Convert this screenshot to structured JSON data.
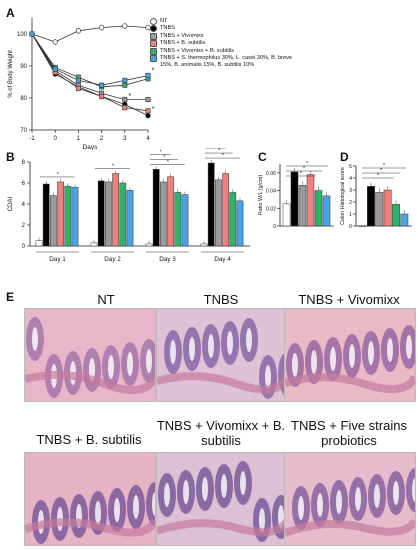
{
  "panels": {
    "A": "A",
    "B": "B",
    "C": "C",
    "D": "D",
    "E": "E"
  },
  "chart_data": [
    {
      "type": "line",
      "panel": "A",
      "xlabel": "Days",
      "ylabel": "% of Body Weight",
      "x": [
        -1,
        0,
        1,
        2,
        3,
        4
      ],
      "xlim": [
        -1,
        4
      ],
      "ylim": [
        70,
        105
      ],
      "yticks": [
        70,
        80,
        90,
        100
      ],
      "xticks": [
        -1,
        0,
        1,
        2,
        3,
        4
      ],
      "series": [
        {
          "name": "NT",
          "color": "#ffffff",
          "values": [
            100,
            97.5,
            101,
            102,
            102.5,
            102
          ]
        },
        {
          "name": "TNBS",
          "color": "#000000",
          "values": [
            100,
            87.5,
            83.5,
            80.5,
            78,
            74.5
          ]
        },
        {
          "name": "TNBS + Vivomixx",
          "color": "#9a9a9a",
          "values": [
            100,
            88.5,
            84,
            81.5,
            79.5,
            79.5
          ]
        },
        {
          "name": "TNBS + B. subtilis",
          "color": "#f08080",
          "values": [
            100,
            88,
            83,
            80.5,
            77,
            76
          ]
        },
        {
          "name": "TNBS + Vivomixx + B. subtilis",
          "color": "#2fb36b",
          "values": [
            100,
            89.5,
            86.5,
            83.5,
            84,
            86
          ]
        },
        {
          "name": "TNBS + S. thermophilus 30%, L. casei 30%, B. breve 15%, B. animalis 15%, B. subtilis 10%",
          "color": "#4aa3e6",
          "values": [
            100,
            89,
            85.5,
            84,
            85.5,
            87
          ]
        }
      ]
    },
    {
      "type": "bar",
      "panel": "B",
      "ylabel": "CDAI",
      "ylim": [
        0,
        8
      ],
      "yticks": [
        0,
        2,
        4,
        6,
        8
      ],
      "categories": [
        "Day 1",
        "Day 2",
        "Day 3",
        "Day 4"
      ],
      "series": [
        {
          "name": "NT",
          "color": "#ffffff",
          "values": [
            0.5,
            0.3,
            0.2,
            0.2
          ]
        },
        {
          "name": "TNBS",
          "color": "#000000",
          "values": [
            5.9,
            6.2,
            7.3,
            7.9
          ]
        },
        {
          "name": "TNBS + Vivomixx",
          "color": "#9a9a9a",
          "values": [
            4.8,
            6.1,
            6.1,
            6.3
          ]
        },
        {
          "name": "TNBS + B. subtilis",
          "color": "#f08080",
          "values": [
            6.1,
            6.9,
            6.6,
            6.9
          ]
        },
        {
          "name": "TNBS + Vivomixx + B. subtilis",
          "color": "#2fb36b",
          "values": [
            5.7,
            6.0,
            5.1,
            5.1
          ]
        },
        {
          "name": "TNBS + five strains",
          "color": "#4aa3e6",
          "values": [
            5.6,
            5.3,
            4.9,
            4.3
          ]
        }
      ]
    },
    {
      "type": "bar",
      "panel": "C",
      "ylabel": "Ratio W/L (g/cm)",
      "ylim": [
        0,
        0.07
      ],
      "yticks": [
        0,
        0.02,
        0.04,
        0.06
      ],
      "values": [
        0.025,
        0.061,
        0.046,
        0.058,
        0.04,
        0.034
      ],
      "colors": [
        "#ffffff",
        "#000000",
        "#9a9a9a",
        "#f08080",
        "#2fb36b",
        "#4aa3e6"
      ]
    },
    {
      "type": "bar",
      "panel": "D",
      "ylabel": "Colon Histological score",
      "ylim": [
        0,
        5
      ],
      "yticks": [
        0,
        1,
        2,
        3,
        4,
        5
      ],
      "values": [
        0,
        3.3,
        2.8,
        3.0,
        1.8,
        1.0
      ],
      "colors": [
        "#ffffff",
        "#000000",
        "#9a9a9a",
        "#f08080",
        "#2fb36b",
        "#4aa3e6"
      ]
    }
  ],
  "legend": [
    {
      "label": "NT",
      "color": "#ffffff",
      "shape": "circle"
    },
    {
      "label": "TNBS",
      "color": "#000000",
      "shape": "circle"
    },
    {
      "label": "TNBS + Vivomixx",
      "color": "#9a9a9a",
      "shape": "square"
    },
    {
      "label": "TNBS + B. subtilis",
      "color": "#f08080",
      "shape": "square"
    },
    {
      "label": "TNBS + Vivomixx + B. subtilis",
      "color": "#2fb36b",
      "shape": "square"
    },
    {
      "label": "TNBS + S. thermophilus 30%, L. casei 30%, B. breve 15%, B. animalis 15%, B. subtilis 10%",
      "color": "#4aa3e6",
      "shape": "square"
    }
  ],
  "histology": [
    {
      "title": "NT",
      "tone": "#e8b6c9",
      "mucosa": "#9c6ca6"
    },
    {
      "title": "TNBS",
      "tone": "#dfc2d6",
      "mucosa": "#7e5aa0"
    },
    {
      "title": "TNBS + Vivomixx",
      "tone": "#eab9c6",
      "mucosa": "#8c5e9e"
    },
    {
      "title": "TNBS + B. subtilis",
      "tone": "#e6b3c5",
      "mucosa": "#6f4c95"
    },
    {
      "title": "TNBS + Vivomixx + B. subtilis",
      "tone": "#dcc0d4",
      "mucosa": "#6d4e92"
    },
    {
      "title": "TNBS + Five strains probiotics",
      "tone": "#e5bccb",
      "mucosa": "#7b5699"
    }
  ]
}
